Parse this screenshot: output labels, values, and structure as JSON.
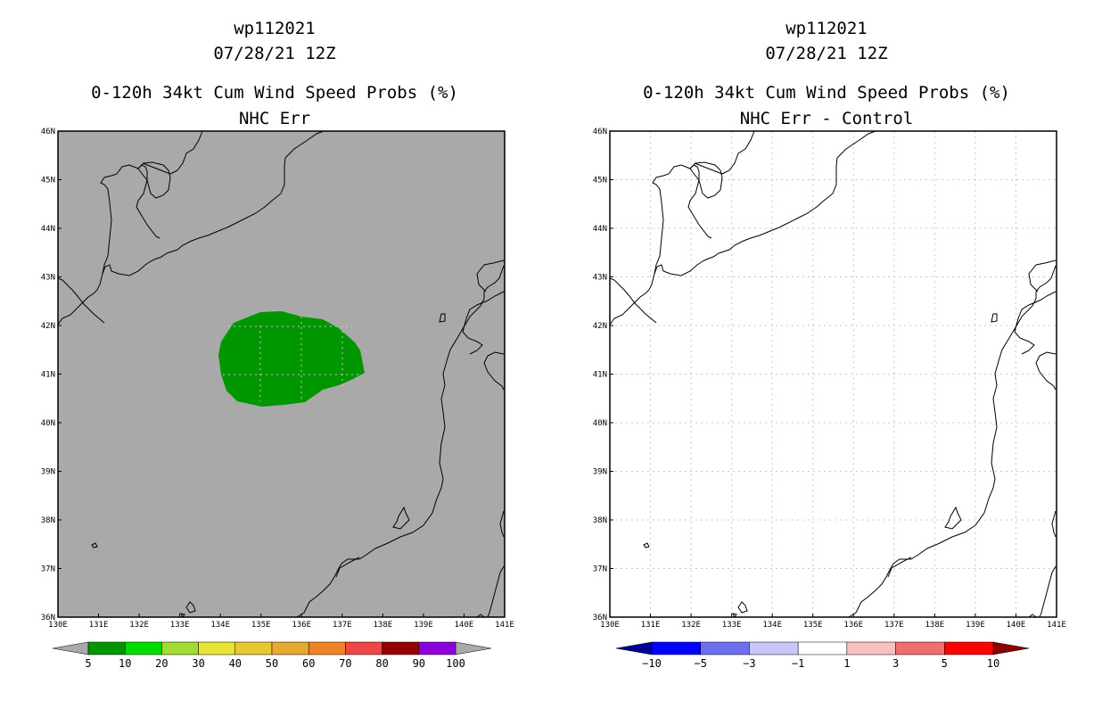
{
  "left_panel": {
    "storm_id": "wp112021",
    "datetime": "07/28/21 12Z",
    "product": "0-120h 34kt Cum Wind Speed Probs (%)",
    "subtitle": "NHC Err",
    "lat_labels": [
      "46N",
      "45N",
      "44N",
      "43N",
      "42N",
      "41N",
      "40N",
      "39N",
      "38N",
      "37N",
      "36N"
    ],
    "lon_labels": [
      "130E",
      "131E",
      "132E",
      "133E",
      "134E",
      "135E",
      "136E",
      "137E",
      "138E",
      "139E",
      "140E",
      "141E"
    ],
    "legend": {
      "labels": [
        "5",
        "10",
        "20",
        "30",
        "40",
        "50",
        "60",
        "70",
        "80",
        "90",
        "100"
      ],
      "colors": [
        "#009600",
        "#00dc00",
        "#a0dc32",
        "#e6e632",
        "#e6c832",
        "#e6aa32",
        "#f08228",
        "#f04646",
        "#960000",
        "#8c00dc"
      ],
      "below_color": "#a9a9a9",
      "above_color": "#a9a9a9"
    },
    "background_color": "#a9a9a9"
  },
  "right_panel": {
    "storm_id": "wp112021",
    "datetime": "07/28/21 12Z",
    "product": "0-120h 34kt Cum Wind Speed Probs (%)",
    "subtitle": "NHC Err - Control",
    "lat_labels": [
      "46N",
      "45N",
      "44N",
      "43N",
      "42N",
      "41N",
      "40N",
      "39N",
      "38N",
      "37N",
      "36N"
    ],
    "lon_labels": [
      "130E",
      "131E",
      "132E",
      "133E",
      "134E",
      "135E",
      "136E",
      "137E",
      "138E",
      "139E",
      "140E",
      "141E"
    ],
    "legend": {
      "labels": [
        "−10",
        "−5",
        "−3",
        "−1",
        "1",
        "3",
        "5",
        "10"
      ],
      "colors": [
        "#0000ff",
        "#6e6ef0",
        "#c8c8f8",
        "#ffffff",
        "#f8c0c0",
        "#f06e6e",
        "#ff0000"
      ],
      "below_color": "#000096",
      "above_color": "#8c0000"
    },
    "background_color": "#ffffff"
  },
  "colors": {
    "probability_area": "#009600",
    "grid": "#c8c8c8",
    "coast": "#000000"
  }
}
